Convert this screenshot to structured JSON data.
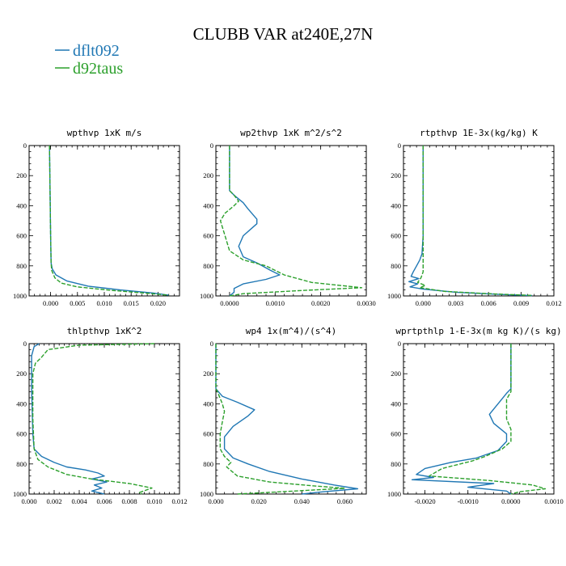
{
  "figure": {
    "title": "CLUBB VAR at240E,27N",
    "legend": [
      {
        "name": "dflt092",
        "color": "#1f77b4",
        "dash": "solid"
      },
      {
        "name": "d92taus",
        "color": "#2ca02c",
        "dash": "dashed"
      }
    ]
  },
  "chart_data": [
    {
      "type": "line",
      "title": "wpthvp  1xK m/s",
      "xlim": [
        -0.004,
        0.024
      ],
      "xticks": [
        0.0,
        0.005,
        0.01,
        0.015,
        0.02
      ],
      "xtick_labels": [
        "0.000",
        "0.005",
        "0.010",
        "0.015",
        "0.020"
      ],
      "ylim": [
        1000,
        0
      ],
      "yticks": [
        0,
        200,
        400,
        600,
        800,
        1000
      ],
      "ytick_labels": [
        "0",
        "200",
        "400",
        "600",
        "800",
        "1000"
      ],
      "series": [
        {
          "name": "dflt092",
          "points": [
            [
              -0.0002,
              0
            ],
            [
              -0.0001,
              300
            ],
            [
              0.0,
              600
            ],
            [
              0.0001,
              780
            ],
            [
              0.0003,
              820
            ],
            [
              0.001,
              860
            ],
            [
              0.003,
              900
            ],
            [
              0.007,
              935
            ],
            [
              0.013,
              960
            ],
            [
              0.019,
              980
            ],
            [
              0.022,
              995
            ]
          ]
        },
        {
          "name": "d92taus",
          "points": [
            [
              -0.0002,
              0
            ],
            [
              -0.0001,
              300
            ],
            [
              0.0,
              600
            ],
            [
              0.0001,
              780
            ],
            [
              0.0002,
              830
            ],
            [
              0.0008,
              880
            ],
            [
              0.002,
              915
            ],
            [
              0.005,
              940
            ],
            [
              0.011,
              962
            ],
            [
              0.018,
              982
            ],
            [
              0.022,
              995
            ]
          ]
        }
      ]
    },
    {
      "type": "line",
      "title": "wp2thvp  1xK m^2/s^2",
      "xlim": [
        -0.0003,
        0.003
      ],
      "xticks": [
        0.0,
        0.001,
        0.002,
        0.003
      ],
      "xtick_labels": [
        "0.0000",
        "0.0010",
        "0.0020",
        "0.0030"
      ],
      "ylim": [
        1000,
        0
      ],
      "yticks": [
        0,
        200,
        400,
        600,
        800,
        1000
      ],
      "ytick_labels": [
        "0",
        "200",
        "400",
        "600",
        "800",
        "1000"
      ],
      "series": [
        {
          "name": "dflt092",
          "points": [
            [
              0.0,
              0
            ],
            [
              0.0,
              300
            ],
            [
              0.0001,
              330
            ],
            [
              0.0003,
              380
            ],
            [
              0.0004,
              420
            ],
            [
              0.0006,
              490
            ],
            [
              0.0006,
              520
            ],
            [
              0.0003,
              600
            ],
            [
              0.0002,
              670
            ],
            [
              0.0003,
              740
            ],
            [
              0.0006,
              780
            ],
            [
              0.0009,
              830
            ],
            [
              0.0011,
              860
            ],
            [
              0.0008,
              890
            ],
            [
              0.0003,
              920
            ],
            [
              0.0001,
              950
            ],
            [
              0.0001,
              975
            ],
            [
              0.0,
              1000
            ]
          ]
        },
        {
          "name": "d92taus",
          "points": [
            [
              0.0,
              0
            ],
            [
              0.0,
              300
            ],
            [
              0.0001,
              330
            ],
            [
              0.0002,
              370
            ],
            [
              0.0001,
              400
            ],
            [
              -0.0001,
              450
            ],
            [
              -0.0002,
              500
            ],
            [
              -0.0001,
              600
            ],
            [
              0.0,
              700
            ],
            [
              0.0003,
              760
            ],
            [
              0.0008,
              800
            ],
            [
              0.0012,
              860
            ],
            [
              0.0018,
              910
            ],
            [
              0.0029,
              945
            ],
            [
              0.0015,
              965
            ],
            [
              0.0003,
              985
            ],
            [
              0.0,
              1000
            ]
          ]
        }
      ]
    },
    {
      "type": "line",
      "title": "rtpthvp  1E-3x(kg/kg) K",
      "xlim": [
        -0.0018,
        0.012
      ],
      "xticks": [
        0.0,
        0.003,
        0.006,
        0.009,
        0.012
      ],
      "xtick_labels": [
        "0.000",
        "0.003",
        "0.006",
        "0.009",
        "0.012"
      ],
      "ylim": [
        1000,
        0
      ],
      "yticks": [
        0,
        200,
        400,
        600,
        800,
        1000
      ],
      "ytick_labels": [
        "0",
        "200",
        "400",
        "600",
        "800",
        "1000"
      ],
      "series": [
        {
          "name": "dflt092",
          "points": [
            [
              0.0,
              0
            ],
            [
              0.0,
              600
            ],
            [
              -0.0001,
              720
            ],
            [
              -0.0003,
              760
            ],
            [
              -0.0006,
              800
            ],
            [
              -0.0009,
              840
            ],
            [
              -0.0011,
              870
            ],
            [
              -0.0004,
              885
            ],
            [
              -0.0013,
              905
            ],
            [
              -0.0005,
              920
            ],
            [
              -0.0012,
              940
            ],
            [
              0.0,
              955
            ],
            [
              0.003,
              975
            ],
            [
              0.007,
              990
            ],
            [
              0.01,
              998
            ]
          ]
        },
        {
          "name": "d92taus",
          "points": [
            [
              0.0,
              0
            ],
            [
              0.0,
              840
            ],
            [
              -0.0002,
              880
            ],
            [
              -0.0005,
              910
            ],
            [
              0.0002,
              930
            ],
            [
              -0.0003,
              945
            ],
            [
              0.002,
              970
            ],
            [
              0.006,
              985
            ],
            [
              0.01,
              997
            ]
          ]
        }
      ]
    },
    {
      "type": "line",
      "title": "thlpthvp  1xK^2",
      "xlim": [
        0.0,
        0.012
      ],
      "xticks": [
        0.0,
        0.002,
        0.004,
        0.006,
        0.008,
        0.01,
        0.012
      ],
      "xtick_labels": [
        "0.000",
        "0.002",
        "0.004",
        "0.006",
        "0.008",
        "0.010",
        "0.012"
      ],
      "ylim": [
        1000,
        0
      ],
      "yticks": [
        0,
        200,
        400,
        600,
        800,
        1000
      ],
      "ytick_labels": [
        "0",
        "200",
        "400",
        "600",
        "800",
        "1000"
      ],
      "series": [
        {
          "name": "dflt092",
          "points": [
            [
              0.0008,
              0
            ],
            [
              0.0004,
              20
            ],
            [
              0.0002,
              80
            ],
            [
              0.0002,
              300
            ],
            [
              0.0003,
              600
            ],
            [
              0.0004,
              700
            ],
            [
              0.001,
              750
            ],
            [
              0.002,
              790
            ],
            [
              0.003,
              820
            ],
            [
              0.0045,
              840
            ],
            [
              0.0055,
              860
            ],
            [
              0.006,
              880
            ],
            [
              0.005,
              900
            ],
            [
              0.0062,
              920
            ],
            [
              0.0052,
              940
            ],
            [
              0.0058,
              960
            ],
            [
              0.005,
              980
            ],
            [
              0.006,
              1000
            ]
          ]
        },
        {
          "name": "d92taus",
          "points": [
            [
              0.01,
              0
            ],
            [
              0.004,
              10
            ],
            [
              0.0015,
              40
            ],
            [
              0.001,
              90
            ],
            [
              0.0005,
              130
            ],
            [
              0.0003,
              200
            ],
            [
              0.0003,
              500
            ],
            [
              0.0004,
              700
            ],
            [
              0.0007,
              770
            ],
            [
              0.0015,
              820
            ],
            [
              0.003,
              870
            ],
            [
              0.005,
              900
            ],
            [
              0.008,
              930
            ],
            [
              0.0098,
              960
            ],
            [
              0.0088,
              990
            ],
            [
              0.009,
              1000
            ]
          ]
        }
      ]
    },
    {
      "type": "line",
      "title": "wp4  1x(m^4)/(s^4)",
      "xlim": [
        0.0,
        0.07
      ],
      "xticks": [
        0.0,
        0.02,
        0.04,
        0.06
      ],
      "xtick_labels": [
        "0.000",
        "0.020",
        "0.040",
        "0.060"
      ],
      "ylim": [
        1000,
        0
      ],
      "yticks": [
        0,
        200,
        400,
        600,
        800,
        1000
      ],
      "ytick_labels": [
        "0",
        "200",
        "400",
        "600",
        "800",
        "1000"
      ],
      "series": [
        {
          "name": "dflt092",
          "points": [
            [
              0.0,
              0
            ],
            [
              0.0,
              300
            ],
            [
              0.003,
              350
            ],
            [
              0.01,
              390
            ],
            [
              0.018,
              440
            ],
            [
              0.015,
              480
            ],
            [
              0.008,
              550
            ],
            [
              0.004,
              620
            ],
            [
              0.004,
              700
            ],
            [
              0.008,
              760
            ],
            [
              0.015,
              800
            ],
            [
              0.025,
              850
            ],
            [
              0.04,
              900
            ],
            [
              0.055,
              940
            ],
            [
              0.066,
              965
            ],
            [
              0.05,
              985
            ],
            [
              0.04,
              1000
            ]
          ]
        },
        {
          "name": "d92taus",
          "points": [
            [
              0.0,
              0
            ],
            [
              0.0,
              300
            ],
            [
              0.001,
              330
            ],
            [
              0.003,
              400
            ],
            [
              0.004,
              450
            ],
            [
              0.003,
              520
            ],
            [
              0.002,
              600
            ],
            [
              0.002,
              700
            ],
            [
              0.004,
              750
            ],
            [
              0.007,
              790
            ],
            [
              0.005,
              820
            ],
            [
              0.01,
              880
            ],
            [
              0.025,
              920
            ],
            [
              0.045,
              945
            ],
            [
              0.06,
              962
            ],
            [
              0.03,
              985
            ],
            [
              0.01,
              1000
            ]
          ]
        }
      ]
    },
    {
      "type": "line",
      "title": "wprtpthlp  1-E-3x(m kg K)/(s kg)",
      "xlim": [
        -0.0025,
        0.001
      ],
      "xticks": [
        -0.002,
        -0.001,
        0.0,
        0.001
      ],
      "xtick_labels": [
        "-0.0020",
        "-0.0010",
        "0.0000",
        "0.0010"
      ],
      "ylim": [
        1000,
        0
      ],
      "yticks": [
        0,
        200,
        400,
        600,
        800,
        1000
      ],
      "ytick_labels": [
        "0",
        "200",
        "400",
        "600",
        "800",
        "1000"
      ],
      "series": [
        {
          "name": "dflt092",
          "points": [
            [
              0.0,
              0
            ],
            [
              0.0,
              300
            ],
            [
              -0.0001,
              330
            ],
            [
              -0.0003,
              400
            ],
            [
              -0.0005,
              470
            ],
            [
              -0.0004,
              530
            ],
            [
              -0.0001,
              600
            ],
            [
              -0.0001,
              650
            ],
            [
              -0.0003,
              710
            ],
            [
              -0.0008,
              760
            ],
            [
              -0.0014,
              790
            ],
            [
              -0.002,
              830
            ],
            [
              -0.0022,
              870
            ],
            [
              -0.0018,
              890
            ],
            [
              -0.0023,
              905
            ],
            [
              -0.0004,
              930
            ],
            [
              -0.001,
              955
            ],
            [
              -0.0001,
              980
            ],
            [
              0.0,
              1000
            ]
          ]
        },
        {
          "name": "d92taus",
          "points": [
            [
              0.0,
              0
            ],
            [
              0.0,
              320
            ],
            [
              -0.0001,
              370
            ],
            [
              -0.0001,
              500
            ],
            [
              0.0,
              570
            ],
            [
              0.0,
              650
            ],
            [
              -0.0002,
              700
            ],
            [
              -0.0006,
              750
            ],
            [
              -0.0009,
              780
            ],
            [
              -0.0016,
              830
            ],
            [
              -0.0019,
              880
            ],
            [
              -0.0005,
              910
            ],
            [
              0.0005,
              940
            ],
            [
              0.0008,
              965
            ],
            [
              0.0002,
              985
            ],
            [
              0.0,
              1000
            ]
          ]
        }
      ]
    }
  ]
}
